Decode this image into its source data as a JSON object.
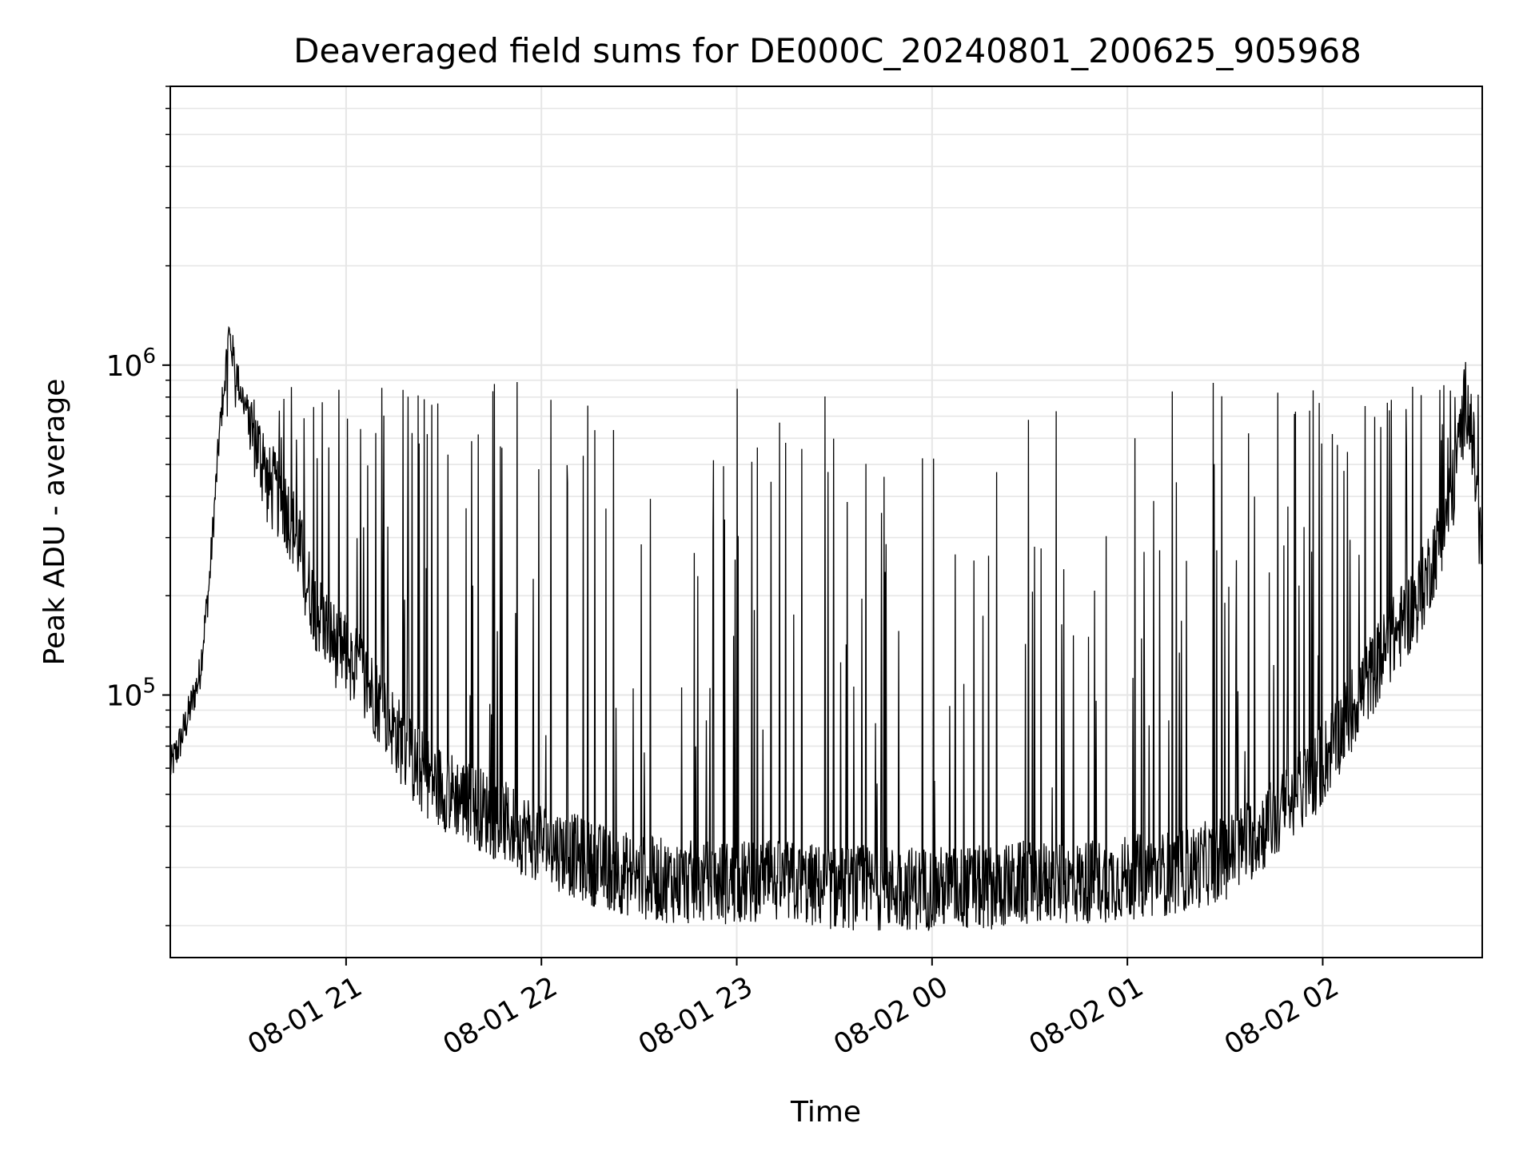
{
  "chart_data": {
    "type": "line",
    "title": "Deaveraged field sums for DE000C_20240801_200625_905968",
    "xlabel": "Time",
    "ylabel": "Peak ADU - average",
    "xlim": [
      "2024-08-01 20:06",
      "2024-08-02 02:49"
    ],
    "ylim": [
      16000,
      7000000
    ],
    "yscale": "log",
    "grid": true,
    "line_color": "#000000",
    "x_ticks": [
      {
        "value": "2024-08-01 21:00",
        "label": "08-01 21"
      },
      {
        "value": "2024-08-01 22:00",
        "label": "08-01 22"
      },
      {
        "value": "2024-08-01 23:00",
        "label": "08-01 23"
      },
      {
        "value": "2024-08-02 00:00",
        "label": "08-02 00"
      },
      {
        "value": "2024-08-02 01:00",
        "label": "08-02 01"
      },
      {
        "value": "2024-08-02 02:00",
        "label": "08-02 02"
      }
    ],
    "y_ticks": [
      {
        "value": 100000,
        "base": "10",
        "exp": "5"
      },
      {
        "value": 1000000,
        "base": "10",
        "exp": "6"
      }
    ],
    "series": [
      {
        "x": [
          "2024-08-01 20:06",
          "2024-08-01 20:09",
          "2024-08-01 20:12",
          "2024-08-01 20:15",
          "2024-08-01 20:18",
          "2024-08-01 20:21",
          "2024-08-01 20:24",
          "2024-08-01 20:27",
          "2024-08-01 20:30",
          "2024-08-01 20:33",
          "2024-08-01 20:36",
          "2024-08-01 20:39",
          "2024-08-01 20:42",
          "2024-08-01 20:45",
          "2024-08-01 20:48",
          "2024-08-01 20:51",
          "2024-08-01 20:54",
          "2024-08-01 20:57",
          "2024-08-01 21:00",
          "2024-08-01 21:05",
          "2024-08-01 21:10",
          "2024-08-01 21:15",
          "2024-08-01 21:20",
          "2024-08-01 21:30",
          "2024-08-01 21:40",
          "2024-08-01 21:50",
          "2024-08-01 22:00",
          "2024-08-01 22:15",
          "2024-08-01 22:30",
          "2024-08-01 22:45",
          "2024-08-01 23:00",
          "2024-08-01 23:15",
          "2024-08-01 23:30",
          "2024-08-01 23:45",
          "2024-08-02 00:00",
          "2024-08-02 00:15",
          "2024-08-02 00:30",
          "2024-08-02 00:45",
          "2024-08-02 01:00",
          "2024-08-02 01:15",
          "2024-08-02 01:30",
          "2024-08-02 01:40",
          "2024-08-02 01:50",
          "2024-08-02 02:00",
          "2024-08-02 02:10",
          "2024-08-02 02:20",
          "2024-08-02 02:30",
          "2024-08-02 02:35",
          "2024-08-02 02:40",
          "2024-08-02 02:44",
          "2024-08-02 02:46",
          "2024-08-02 02:49"
        ],
        "y": [
          60000,
          72000,
          90000,
          115000,
          220000,
          600000,
          1250000,
          880000,
          700000,
          560000,
          430000,
          400000,
          360000,
          300000,
          220000,
          180000,
          160000,
          140000,
          130000,
          115000,
          95000,
          78000,
          62000,
          52000,
          46000,
          40000,
          36000,
          31000,
          28000,
          27000,
          27000,
          27000,
          26000,
          26000,
          26000,
          26000,
          27000,
          27000,
          28000,
          29000,
          32000,
          38000,
          46000,
          62000,
          95000,
          140000,
          200000,
          280000,
          420000,
          800000,
          600000,
          250000
        ]
      }
    ]
  }
}
